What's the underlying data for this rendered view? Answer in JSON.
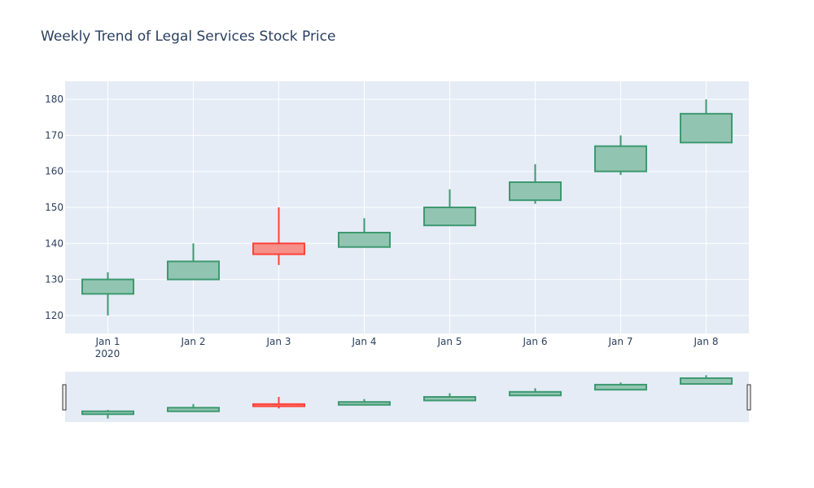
{
  "chart_data": {
    "type": "candlestick",
    "title": "Weekly Trend of Legal Services Stock Price",
    "xlabel": "",
    "ylabel": "",
    "x_year_label": "2020",
    "categories": [
      "Jan 1",
      "Jan 2",
      "Jan 3",
      "Jan 4",
      "Jan 5",
      "Jan 6",
      "Jan 7",
      "Jan 8"
    ],
    "ohlc": [
      {
        "date": "Jan 1",
        "open": 126,
        "high": 132,
        "low": 120,
        "close": 130
      },
      {
        "date": "Jan 2",
        "open": 130,
        "high": 140,
        "low": 130,
        "close": 135
      },
      {
        "date": "Jan 3",
        "open": 140,
        "high": 150,
        "low": 134,
        "close": 137
      },
      {
        "date": "Jan 4",
        "open": 139,
        "high": 147,
        "low": 139,
        "close": 143
      },
      {
        "date": "Jan 5",
        "open": 145,
        "high": 155,
        "low": 145,
        "close": 150
      },
      {
        "date": "Jan 6",
        "open": 152,
        "high": 162,
        "low": 151,
        "close": 157
      },
      {
        "date": "Jan 7",
        "open": 160,
        "high": 170,
        "low": 159,
        "close": 167
      },
      {
        "date": "Jan 8",
        "open": 168,
        "high": 180,
        "low": 168,
        "close": 176
      }
    ],
    "yticks": [
      120,
      130,
      140,
      150,
      160,
      170,
      180
    ],
    "ylim": [
      115,
      185
    ],
    "grid": true,
    "increasing_color": "#3D9970",
    "increasing_fill": "#92C5B1",
    "decreasing_color": "#FF4136",
    "decreasing_fill": "#F5908A",
    "plot_bg": "#E5ECF6",
    "rangeslider": true
  }
}
